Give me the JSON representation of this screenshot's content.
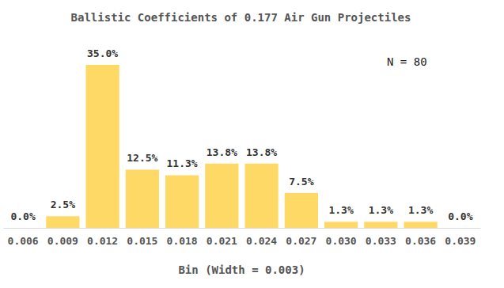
{
  "chart_data": {
    "type": "bar",
    "title": "Ballistic Coefficients of 0.177 Air Gun Projectiles",
    "x_label": "Bin (Width = 0.003)",
    "annotations": [
      "N = 80"
    ],
    "categories": [
      "0.006",
      "0.009",
      "0.012",
      "0.015",
      "0.018",
      "0.021",
      "0.024",
      "0.027",
      "0.030",
      "0.033",
      "0.036",
      "0.039"
    ],
    "values": [
      0.0,
      2.5,
      35.0,
      12.5,
      11.3,
      13.8,
      13.8,
      7.5,
      1.3,
      1.3,
      1.3,
      0.0
    ],
    "value_labels": [
      "0.0%",
      "2.5%",
      "35.0%",
      "12.5%",
      "11.3%",
      "13.8%",
      "13.8%",
      "7.5%",
      "1.3%",
      "1.3%",
      "1.3%",
      "0.0%"
    ],
    "color": "#ffd966",
    "data_labels": true,
    "tick_labels": "x",
    "grid": false
  }
}
